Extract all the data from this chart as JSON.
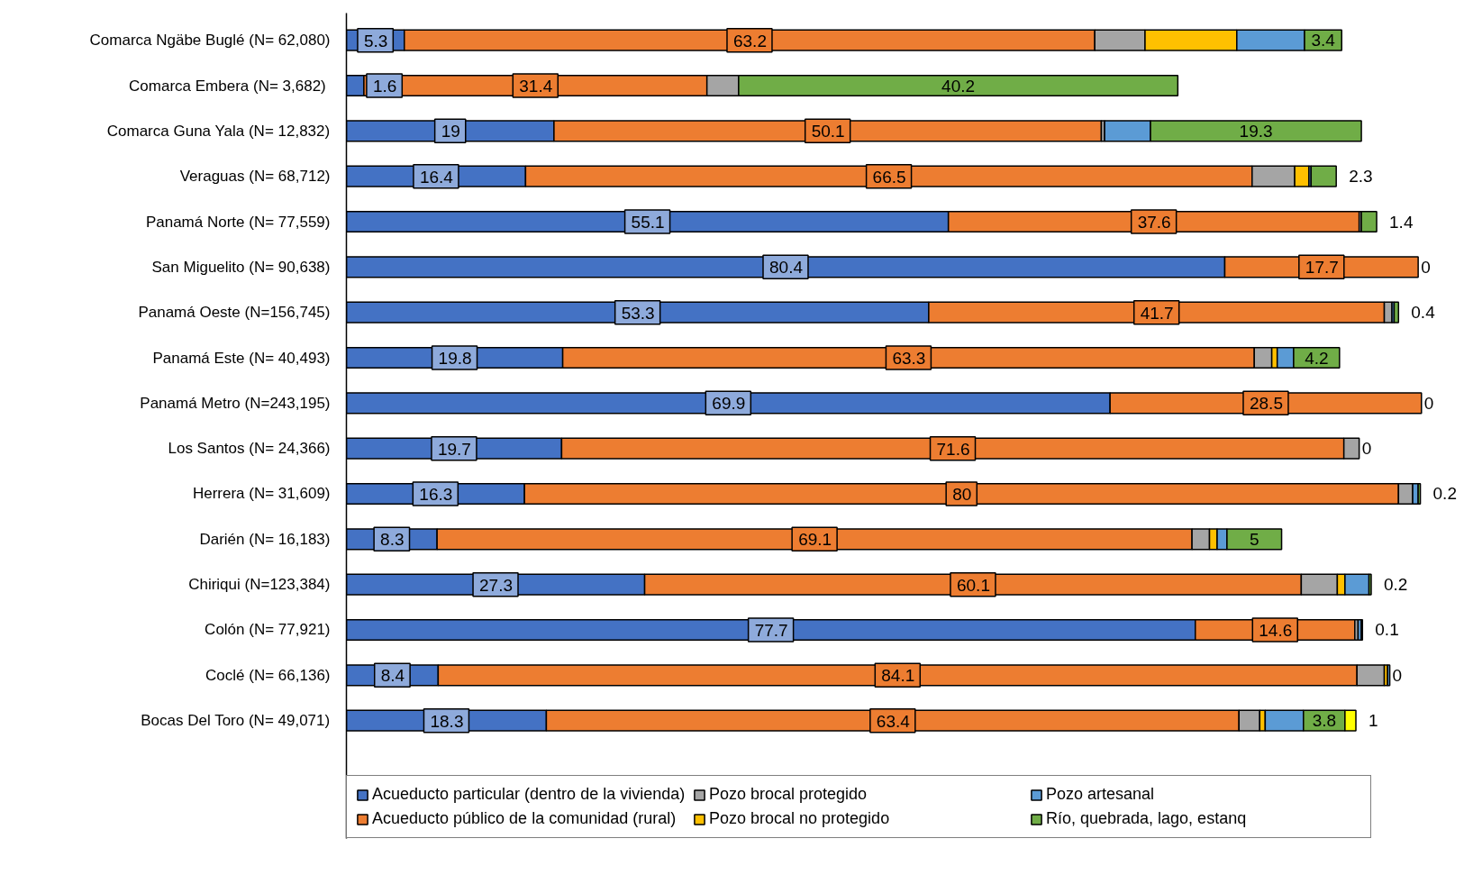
{
  "chart_data": {
    "type": "bar",
    "orientation": "horizontal",
    "stacked": true,
    "categories": [
      "Comarca Ngäbe Buglé (N= 62,080)",
      "Comarca Embera (N=  3,682)",
      "Comarca Guna Yala (N= 12,832)",
      "Veraguas (N= 68,712)",
      "Panamá Norte (N= 77,559)",
      "San Miguelito (N= 90,638)",
      "Panamá Oeste (N=156,745)",
      "Panamá Este (N= 40,493)",
      "Panamá Metro (N=243,195)",
      "Los Santos (N= 24,366)",
      "Herrera (N= 31,609)",
      "Darién (N= 16,183)",
      "Chiriqui (N=123,384)",
      "Colón (N= 77,921)",
      "Coclé (N= 66,136)",
      "Bocas Del Toro (N= 49,071)"
    ],
    "tick_labels": "y",
    "legend": "bottom",
    "grid": false,
    "series": [
      {
        "name": "Acueducto particular (dentro de la vivienda)",
        "color": "#4472c4",
        "values": [
          5.3,
          1.6,
          19,
          16.4,
          55.1,
          80.4,
          53.3,
          19.8,
          69.9,
          19.7,
          16.3,
          8.3,
          27.3,
          77.7,
          8.4,
          18.3
        ],
        "value_labels": [
          "5.3",
          "1.6",
          "19",
          "16.4",
          "55.1",
          "80.4",
          "53.3",
          "19.8",
          "69.9",
          "19.7",
          "16.3",
          "8.3",
          "27.3",
          "77.7",
          "8.4",
          "18.3"
        ]
      },
      {
        "name": "Acueducto público de la comunidad (rural)",
        "color": "#ed7d31",
        "values": [
          63.2,
          31.4,
          50.1,
          66.5,
          37.6,
          17.7,
          41.7,
          63.3,
          28.5,
          71.6,
          80,
          69.1,
          60.1,
          14.6,
          84.1,
          63.4
        ],
        "value_labels": [
          "63.2",
          "31.4",
          "50.1",
          "66.5",
          "37.6",
          "17.7",
          "41.7",
          "63.3",
          "28.5",
          "71.6",
          "80",
          "69.1",
          "60.1",
          "14.6",
          "84.1",
          "63.4"
        ]
      },
      {
        "name": "Pozo brocal protegido",
        "color": "#a5a5a5",
        "values": [
          4.6,
          2.9,
          0.3,
          3.9,
          0.2,
          0,
          0.7,
          1.6,
          0,
          1.4,
          1.3,
          1.6,
          3.3,
          0.3,
          2.5,
          1.9
        ]
      },
      {
        "name": "Pozo brocal no protegido",
        "color": "#ffc000",
        "values": [
          8.4,
          0,
          0,
          1.3,
          0,
          0,
          0,
          0.5,
          0,
          0,
          0,
          0.7,
          0.7,
          0,
          0.3,
          0.5
        ]
      },
      {
        "name": "Pozo artesanal",
        "color": "#5b9bd5",
        "values": [
          6.2,
          0,
          4.2,
          0.2,
          0,
          0,
          0.2,
          1.5,
          0,
          0,
          0.5,
          0.9,
          2.2,
          0.3,
          0.2,
          3.5
        ]
      },
      {
        "name": "Río, quebrada, lago, estanq",
        "color": "#70ad47",
        "values": [
          3.4,
          40.2,
          19.3,
          2.3,
          1.4,
          0,
          0.4,
          4.2,
          0,
          0,
          0.2,
          5,
          0.2,
          0.1,
          0,
          3.8
        ],
        "value_labels": [
          "3.4",
          "40.2",
          "19.3",
          "2.3",
          "1.4",
          "0",
          "0.4",
          "4.2",
          "0",
          "0",
          "0.2",
          "5",
          "0.2",
          "0.1",
          "0",
          "3.8"
        ]
      },
      {
        "color": "#ffff00",
        "values": [
          0,
          0,
          0,
          0,
          0,
          0,
          0,
          0,
          0,
          0,
          0,
          0,
          0,
          0,
          0,
          1
        ],
        "value_labels": [
          null,
          null,
          null,
          null,
          null,
          null,
          null,
          null,
          null,
          null,
          null,
          null,
          null,
          null,
          null,
          "1"
        ]
      }
    ]
  }
}
